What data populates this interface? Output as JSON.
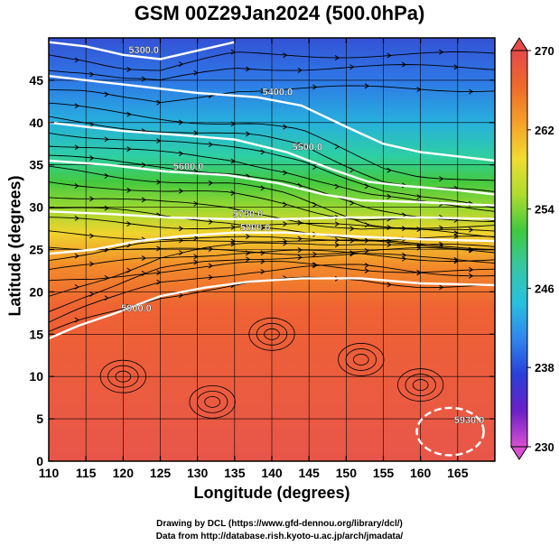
{
  "chart_data": {
    "type": "heatmap",
    "title": "GSM 00Z29Jan2024 (500.0hPa)",
    "xlabel": "Longitude (degrees)",
    "ylabel": "Latitude  (degrees)",
    "xlim": [
      110,
      170
    ],
    "ylim": [
      0,
      50
    ],
    "x_ticks": [
      110,
      115,
      120,
      125,
      130,
      135,
      140,
      145,
      150,
      155,
      160,
      165
    ],
    "y_ticks": [
      0,
      5,
      10,
      15,
      20,
      25,
      30,
      35,
      40,
      45
    ],
    "colorbar": {
      "range": [
        230,
        270
      ],
      "ticks": [
        230,
        238,
        246,
        254,
        262,
        270
      ],
      "colormap": [
        "#d94fd3",
        "#6a1fc7",
        "#2a3fd8",
        "#2f86ee",
        "#27c1dd",
        "#37c7a3",
        "#3fc93f",
        "#aedc2e",
        "#f0dc30",
        "#f5a028",
        "#ee6a2a",
        "#e64a4a"
      ]
    },
    "temperature_band_colors": [
      {
        "lat": 50,
        "color": "#3452d4"
      },
      {
        "lat": 45,
        "color": "#2f78e6"
      },
      {
        "lat": 40,
        "color": "#27b0dd"
      },
      {
        "lat": 36,
        "color": "#2ecfa3"
      },
      {
        "lat": 33,
        "color": "#44c93f"
      },
      {
        "lat": 30,
        "color": "#9ad832"
      },
      {
        "lat": 27,
        "color": "#f0d42e"
      },
      {
        "lat": 23,
        "color": "#f28a2a"
      },
      {
        "lat": 18,
        "color": "#ee6233"
      },
      {
        "lat": 0,
        "color": "#e8564a"
      }
    ],
    "height_contours": [
      {
        "label": "5300.0",
        "points": [
          [
            110,
            49.5
          ],
          [
            115,
            49.0
          ],
          [
            120,
            48.0
          ],
          [
            125,
            47.5
          ],
          [
            130,
            48.5
          ],
          [
            135,
            49.5
          ]
        ]
      },
      {
        "label": "5400.0",
        "points": [
          [
            110,
            45.5
          ],
          [
            120,
            44.5
          ],
          [
            130,
            43.5
          ],
          [
            138,
            43.0
          ],
          [
            144,
            42.0
          ],
          [
            150,
            39.5
          ],
          [
            155,
            37.5
          ],
          [
            160,
            36.5
          ],
          [
            165,
            36.0
          ],
          [
            170,
            35.5
          ]
        ]
      },
      {
        "label": "5500.0",
        "points": [
          [
            110,
            40.0
          ],
          [
            120,
            39.0
          ],
          [
            128,
            38.5
          ],
          [
            135,
            38.0
          ],
          [
            142,
            36.5
          ],
          [
            148,
            34.5
          ],
          [
            153,
            33.0
          ],
          [
            158,
            32.5
          ],
          [
            165,
            32.0
          ],
          [
            170,
            31.5
          ]
        ]
      },
      {
        "label": "5600.0",
        "points": [
          [
            110,
            35.5
          ],
          [
            118,
            35.0
          ],
          [
            126,
            34.2
          ],
          [
            134,
            33.8
          ],
          [
            141,
            32.8
          ],
          [
            147,
            31.5
          ],
          [
            152,
            30.8
          ],
          [
            160,
            30.6
          ],
          [
            170,
            30.2
          ]
        ]
      },
      {
        "label": "5700.0",
        "points": [
          [
            110,
            29.5
          ],
          [
            118,
            29.2
          ],
          [
            126,
            28.8
          ],
          [
            134,
            28.6
          ],
          [
            142,
            28.6
          ],
          [
            150,
            28.8
          ],
          [
            160,
            28.8
          ],
          [
            170,
            28.6
          ]
        ]
      },
      {
        "label": "5800.0",
        "points": [
          [
            110,
            24.5
          ],
          [
            116,
            25.0
          ],
          [
            122,
            26.0
          ],
          [
            128,
            26.6
          ],
          [
            135,
            27.0
          ],
          [
            142,
            27.0
          ],
          [
            150,
            26.6
          ],
          [
            160,
            26.2
          ],
          [
            170,
            26.0
          ]
        ]
      },
      {
        "label": "5900.0",
        "points": [
          [
            110,
            14.5
          ],
          [
            114,
            16.0
          ],
          [
            119,
            17.5
          ],
          [
            125,
            19.5
          ],
          [
            131,
            20.5
          ],
          [
            137,
            21.2
          ],
          [
            144,
            21.6
          ],
          [
            152,
            21.6
          ],
          [
            160,
            21.0
          ],
          [
            170,
            20.8
          ]
        ]
      }
    ],
    "closed_contour": {
      "label": "5930.0",
      "center": [
        164,
        3.5
      ],
      "lon_radius": 4.5,
      "lat_radius": 2.8
    }
  },
  "credits": {
    "line1": "Drawing by DCL (https://www.gfd-dennou.org/library/dcl/)",
    "line2": "Data from http://database.rish.kyoto-u.ac.jp/arch/jmadata/"
  }
}
